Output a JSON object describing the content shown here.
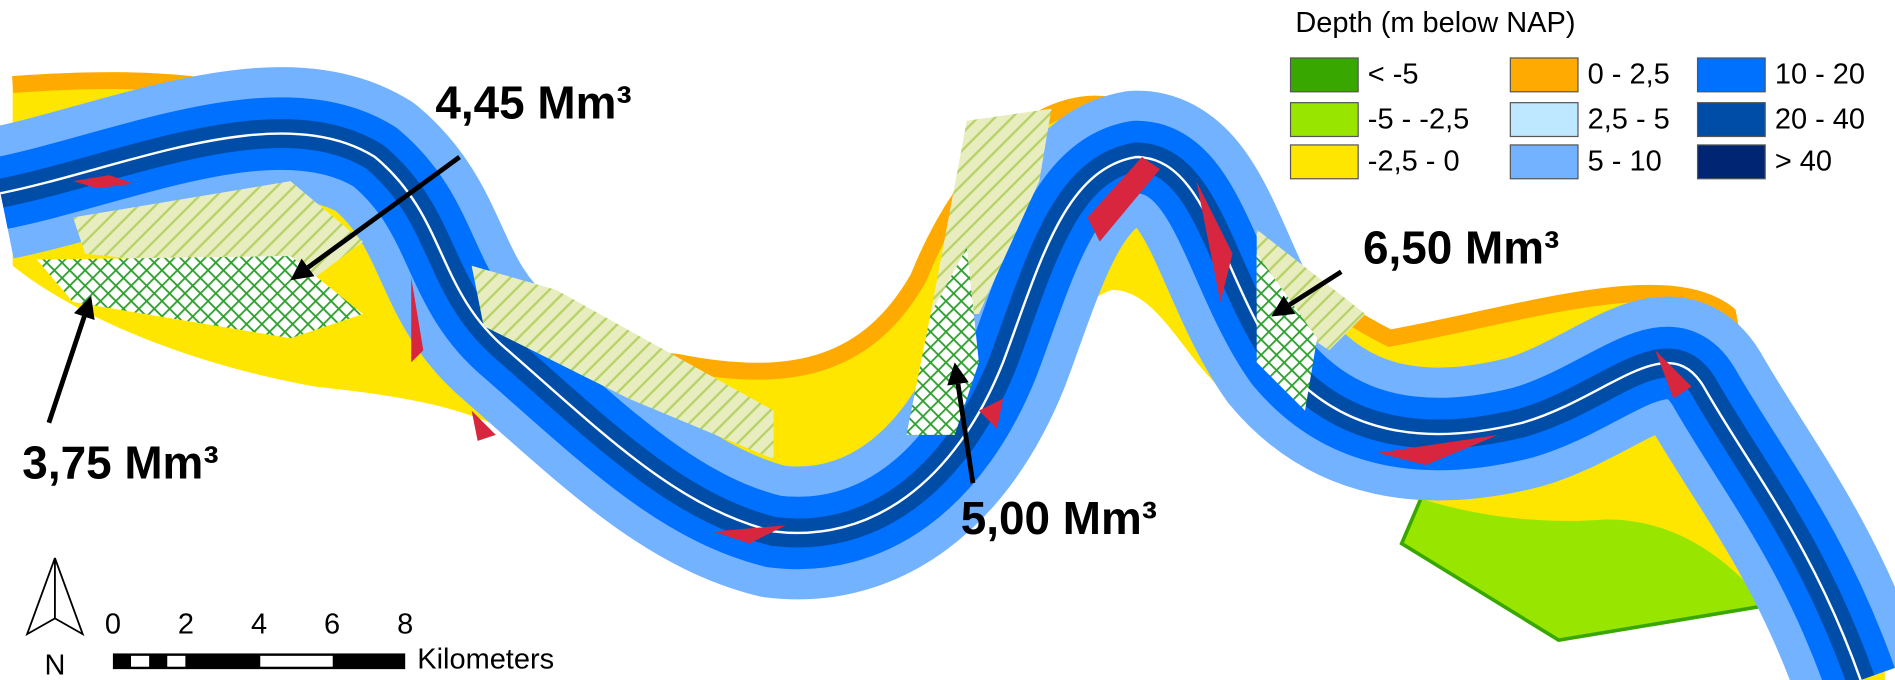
{
  "legend": {
    "title": "Depth (m below NAP)",
    "items": [
      {
        "label": "< -5",
        "color": "#38a800"
      },
      {
        "label": "-5 - -2,5",
        "color": "#98e600"
      },
      {
        "label": "-2,5 - 0",
        "color": "#ffe600"
      },
      {
        "label": "0 - 2,5",
        "color": "#ffaa00"
      },
      {
        "label": "2,5 - 5",
        "color": "#bee8ff"
      },
      {
        "label": "5 - 10",
        "color": "#73b2ff"
      },
      {
        "label": "10 - 20",
        "color": "#0070ff"
      },
      {
        "label": "20 - 40",
        "color": "#004da8"
      },
      {
        "label": "> 40",
        "color": "#002673"
      }
    ]
  },
  "annotations": [
    "4,45 Mm³",
    "3,75 Mm³",
    "5,00 Mm³",
    "6,50 Mm³"
  ],
  "scale_bar": {
    "ticks": [
      0,
      2,
      4,
      6,
      8
    ],
    "unit": "Kilometers"
  },
  "north": "N"
}
